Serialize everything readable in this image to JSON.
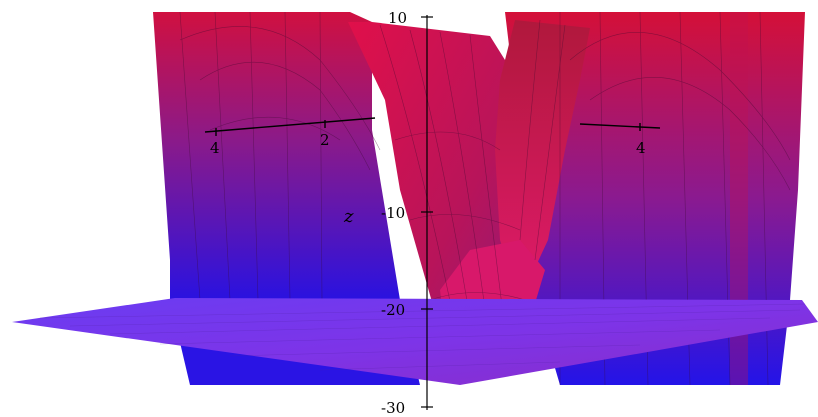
{
  "plot": {
    "z_axis": {
      "label": "z",
      "ticks": [
        "10",
        "-10",
        "-20",
        "-30"
      ]
    },
    "horizontal_axis": {
      "ticks_left": [
        "4",
        "2"
      ],
      "ticks_right": [
        "4"
      ]
    },
    "colors": {
      "surface_top": "#cc0d3d",
      "surface_bottom": "#2a12e0",
      "plane": "#7a3cf0",
      "mesh_line": "#3a0a30",
      "axis": "#000000"
    }
  }
}
